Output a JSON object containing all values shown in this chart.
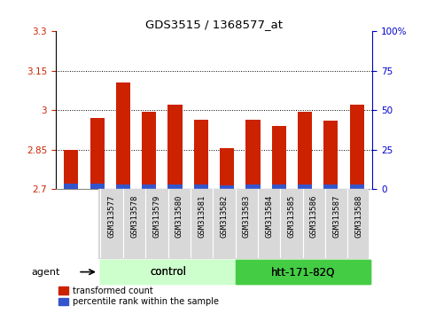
{
  "title": "GDS3515 / 1368577_at",
  "samples": [
    "GSM313577",
    "GSM313578",
    "GSM313579",
    "GSM313580",
    "GSM313581",
    "GSM313582",
    "GSM313583",
    "GSM313584",
    "GSM313585",
    "GSM313586",
    "GSM313587",
    "GSM313588"
  ],
  "red_values": [
    2.85,
    2.97,
    3.105,
    2.995,
    3.02,
    2.965,
    2.855,
    2.965,
    2.94,
    2.995,
    2.96,
    3.02
  ],
  "blue_values": [
    0.022,
    0.02,
    0.018,
    0.018,
    0.018,
    0.018,
    0.016,
    0.018,
    0.018,
    0.018,
    0.018,
    0.018
  ],
  "ymin": 2.7,
  "ymax": 3.3,
  "yticks_left": [
    2.7,
    2.85,
    3.0,
    3.15,
    3.3
  ],
  "yticks_right": [
    0,
    25,
    50,
    75,
    100
  ],
  "ytick_labels_left": [
    "2.7",
    "2.85",
    "3",
    "3.15",
    "3.3"
  ],
  "ytick_labels_right": [
    "0",
    "25",
    "50",
    "75",
    "100%"
  ],
  "grid_lines": [
    2.85,
    3.0,
    3.15
  ],
  "control_label": "control",
  "htt_label": "htt-171-82Q",
  "agent_label": "agent",
  "bar_color_red": "#cc2200",
  "bar_color_blue": "#3355cc",
  "control_bg": "#ccffcc",
  "htt_bg": "#44cc44",
  "sample_bg": "#d8d8d8",
  "tick_label_color_left": "#cc2200",
  "tick_label_color_right": "#0000cc",
  "bar_width": 0.55,
  "base": 2.7,
  "legend_red_label": "transformed count",
  "legend_blue_label": "percentile rank within the sample"
}
